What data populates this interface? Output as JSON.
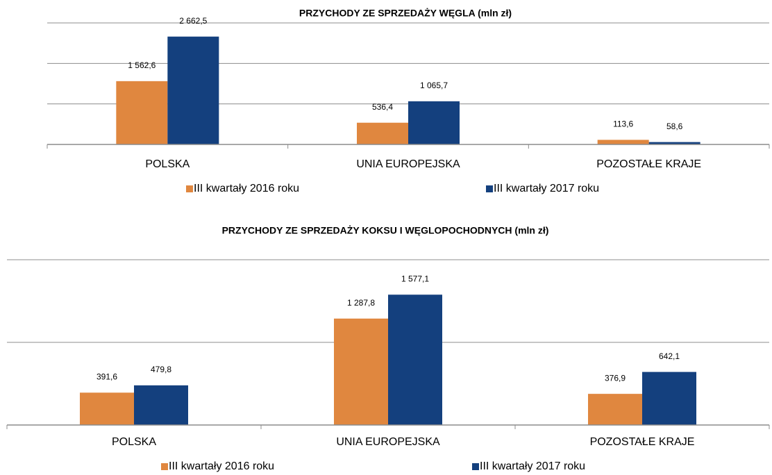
{
  "chart_data": [
    {
      "type": "bar",
      "title": "PRZYCHODY ZE SPRZEDAŻY WĘGLA (mln zł)",
      "categories": [
        "POLSKA",
        "UNIA EUROPEJSKA",
        "POZOSTAŁE KRAJE"
      ],
      "series": [
        {
          "name": "III kwartały 2016 roku",
          "color": "#e0873f",
          "values": [
            1562.6,
            536.4,
            113.6
          ],
          "value_labels": [
            "1 562,6",
            "536,4",
            "113,6"
          ]
        },
        {
          "name": "III kwartały 2017 roku",
          "color": "#14407e",
          "values": [
            2662.5,
            1065.7,
            58.6
          ],
          "value_labels": [
            "2 662,5",
            "1 065,7",
            "58,6"
          ]
        }
      ],
      "ylim": [
        0,
        3000
      ],
      "yticks": [
        0,
        1000,
        2000,
        3000
      ],
      "grid": true,
      "legend": "bottom"
    },
    {
      "type": "bar",
      "title": "PRZYCHODY  ZE SPRZEDAŻY KOKSU I WĘGLOPOCHODNYCH (mln zł)",
      "categories": [
        "POLSKA",
        "UNIA EUROPEJSKA",
        "POZOSTAŁE KRAJE"
      ],
      "series": [
        {
          "name": "III kwartały 2016 roku",
          "color": "#e0873f",
          "values": [
            391.6,
            1287.8,
            376.9
          ],
          "value_labels": [
            "391,6",
            "1 287,8",
            "376,9"
          ]
        },
        {
          "name": "III kwartały 2017 roku",
          "color": "#14407e",
          "values": [
            479.8,
            1577.1,
            642.1
          ],
          "value_labels": [
            "479,8",
            "1 577,1",
            "642,1"
          ]
        }
      ],
      "ylim": [
        0,
        2000
      ],
      "yticks": [
        0,
        1000,
        2000
      ],
      "grid": true,
      "legend": "bottom"
    }
  ]
}
